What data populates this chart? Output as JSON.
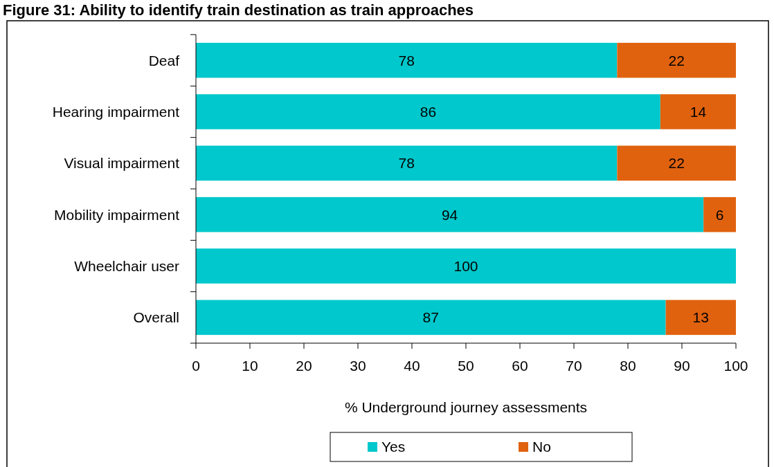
{
  "chart_data": {
    "type": "bar",
    "orientation": "horizontal",
    "stacked": true,
    "title": "Figure 31: Ability to identify train destination as train approaches",
    "xlabel": "% Underground journey assessments",
    "categories": [
      "Deaf",
      "Hearing impairment",
      "Visual impairment",
      "Mobility impairment",
      "Wheelchair user",
      "Overall"
    ],
    "series": [
      {
        "name": "Yes",
        "color": "#00c8cc",
        "values": [
          78,
          86,
          78,
          94,
          100,
          87
        ],
        "value_labels": [
          "78",
          "86",
          "78",
          "94",
          "100",
          "87"
        ]
      },
      {
        "name": "No",
        "color": "#e0620f",
        "values": [
          22,
          14,
          22,
          6,
          0,
          13
        ],
        "value_labels": [
          "22",
          "14",
          "22",
          "6",
          null,
          "13"
        ]
      }
    ],
    "xlim": [
      0,
      100
    ],
    "xticks": [
      0,
      10,
      20,
      30,
      40,
      50,
      60,
      70,
      80,
      90,
      100
    ],
    "legend": "bottom",
    "grid": false
  }
}
